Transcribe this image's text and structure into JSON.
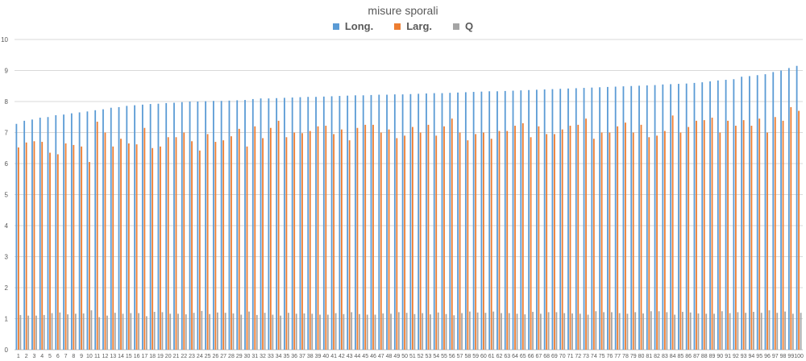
{
  "chart_data": {
    "type": "bar",
    "title": "misure sporali",
    "xlabel": "",
    "ylabel": "",
    "ylim": [
      0,
      10
    ],
    "yticks": [
      0,
      1,
      2,
      3,
      4,
      5,
      6,
      7,
      8,
      9,
      10
    ],
    "grid": true,
    "legend_position": "top",
    "categories": [
      "1",
      "2",
      "3",
      "4",
      "5",
      "6",
      "7",
      "8",
      "9",
      "10",
      "11",
      "12",
      "13",
      "14",
      "15",
      "16",
      "17",
      "18",
      "19",
      "20",
      "21",
      "22",
      "23",
      "24",
      "25",
      "26",
      "27",
      "28",
      "29",
      "30",
      "31",
      "32",
      "33",
      "34",
      "35",
      "36",
      "37",
      "38",
      "39",
      "40",
      "41",
      "42",
      "43",
      "44",
      "45",
      "46",
      "47",
      "48",
      "49",
      "50",
      "51",
      "52",
      "53",
      "54",
      "55",
      "56",
      "57",
      "58",
      "59",
      "60",
      "61",
      "62",
      "63",
      "64",
      "65",
      "66",
      "67",
      "68",
      "69",
      "70",
      "71",
      "72",
      "73",
      "74",
      "75",
      "76",
      "77",
      "78",
      "79",
      "80",
      "81",
      "82",
      "83",
      "84",
      "85",
      "86",
      "87",
      "88",
      "89",
      "90",
      "91",
      "92",
      "93",
      "94",
      "95",
      "96",
      "97",
      "98",
      "99",
      "100"
    ],
    "series": [
      {
        "name": "Long.",
        "color": "#5b9bd5",
        "values": [
          7.28,
          7.38,
          7.42,
          7.48,
          7.5,
          7.56,
          7.58,
          7.62,
          7.65,
          7.68,
          7.72,
          7.75,
          7.8,
          7.82,
          7.86,
          7.88,
          7.9,
          7.92,
          7.93,
          7.95,
          7.96,
          7.98,
          8.0,
          8.0,
          8.01,
          8.02,
          8.02,
          8.03,
          8.04,
          8.05,
          8.08,
          8.1,
          8.1,
          8.11,
          8.12,
          8.13,
          8.14,
          8.15,
          8.15,
          8.16,
          8.17,
          8.18,
          8.19,
          8.2,
          8.2,
          8.21,
          8.22,
          8.22,
          8.23,
          8.23,
          8.24,
          8.25,
          8.26,
          8.27,
          8.27,
          8.28,
          8.29,
          8.3,
          8.31,
          8.32,
          8.33,
          8.33,
          8.34,
          8.35,
          8.36,
          8.37,
          8.38,
          8.39,
          8.4,
          8.41,
          8.42,
          8.43,
          8.44,
          8.45,
          8.46,
          8.47,
          8.48,
          8.49,
          8.5,
          8.51,
          8.52,
          8.53,
          8.55,
          8.56,
          8.57,
          8.58,
          8.6,
          8.62,
          8.65,
          8.68,
          8.7,
          8.72,
          8.8,
          8.82,
          8.85,
          8.88,
          8.95,
          9.0,
          9.08,
          9.15
        ]
      },
      {
        "name": "Larg.",
        "color": "#ed7d31",
        "values": [
          6.52,
          6.68,
          6.72,
          6.7,
          6.35,
          6.3,
          6.65,
          6.6,
          6.55,
          6.05,
          7.35,
          7.0,
          6.55,
          6.8,
          6.65,
          6.62,
          7.15,
          6.5,
          6.55,
          6.85,
          6.85,
          7.0,
          6.72,
          6.42,
          6.95,
          6.7,
          6.75,
          6.88,
          7.12,
          6.55,
          7.2,
          6.82,
          7.15,
          7.38,
          6.85,
          7.0,
          6.98,
          7.05,
          7.2,
          7.22,
          6.95,
          7.1,
          6.75,
          7.15,
          7.25,
          7.25,
          7.0,
          7.1,
          6.82,
          6.9,
          7.18,
          7.0,
          7.25,
          6.9,
          7.2,
          7.45,
          7.0,
          6.75,
          6.95,
          7.0,
          6.8,
          7.05,
          7.05,
          7.22,
          7.3,
          6.85,
          7.2,
          6.95,
          6.95,
          7.1,
          7.22,
          7.25,
          7.45,
          6.8,
          7.0,
          7.0,
          7.2,
          7.32,
          7.0,
          7.25,
          6.85,
          6.9,
          7.05,
          7.55,
          7.0,
          7.18,
          7.38,
          7.4,
          7.48,
          7.0,
          7.38,
          7.22,
          7.4,
          7.22,
          7.45,
          7.0,
          7.5,
          7.38,
          7.82,
          7.7
        ]
      },
      {
        "name": "Q",
        "color": "#a5a5a5",
        "values": [
          1.12,
          1.1,
          1.1,
          1.12,
          1.18,
          1.2,
          1.14,
          1.16,
          1.17,
          1.27,
          1.05,
          1.1,
          1.19,
          1.16,
          1.18,
          1.18,
          1.08,
          1.22,
          1.21,
          1.16,
          1.16,
          1.14,
          1.19,
          1.25,
          1.15,
          1.2,
          1.19,
          1.17,
          1.13,
          1.23,
          1.12,
          1.19,
          1.13,
          1.1,
          1.19,
          1.16,
          1.17,
          1.16,
          1.13,
          1.13,
          1.18,
          1.15,
          1.21,
          1.15,
          1.13,
          1.13,
          1.17,
          1.16,
          1.21,
          1.19,
          1.15,
          1.18,
          1.14,
          1.2,
          1.15,
          1.11,
          1.18,
          1.23,
          1.2,
          1.19,
          1.23,
          1.18,
          1.18,
          1.16,
          1.14,
          1.22,
          1.16,
          1.21,
          1.21,
          1.18,
          1.17,
          1.16,
          1.13,
          1.24,
          1.21,
          1.21,
          1.18,
          1.16,
          1.21,
          1.17,
          1.24,
          1.24,
          1.21,
          1.13,
          1.22,
          1.2,
          1.17,
          1.16,
          1.16,
          1.24,
          1.18,
          1.21,
          1.19,
          1.22,
          1.19,
          1.27,
          1.19,
          1.23,
          1.16,
          1.19
        ]
      }
    ]
  }
}
